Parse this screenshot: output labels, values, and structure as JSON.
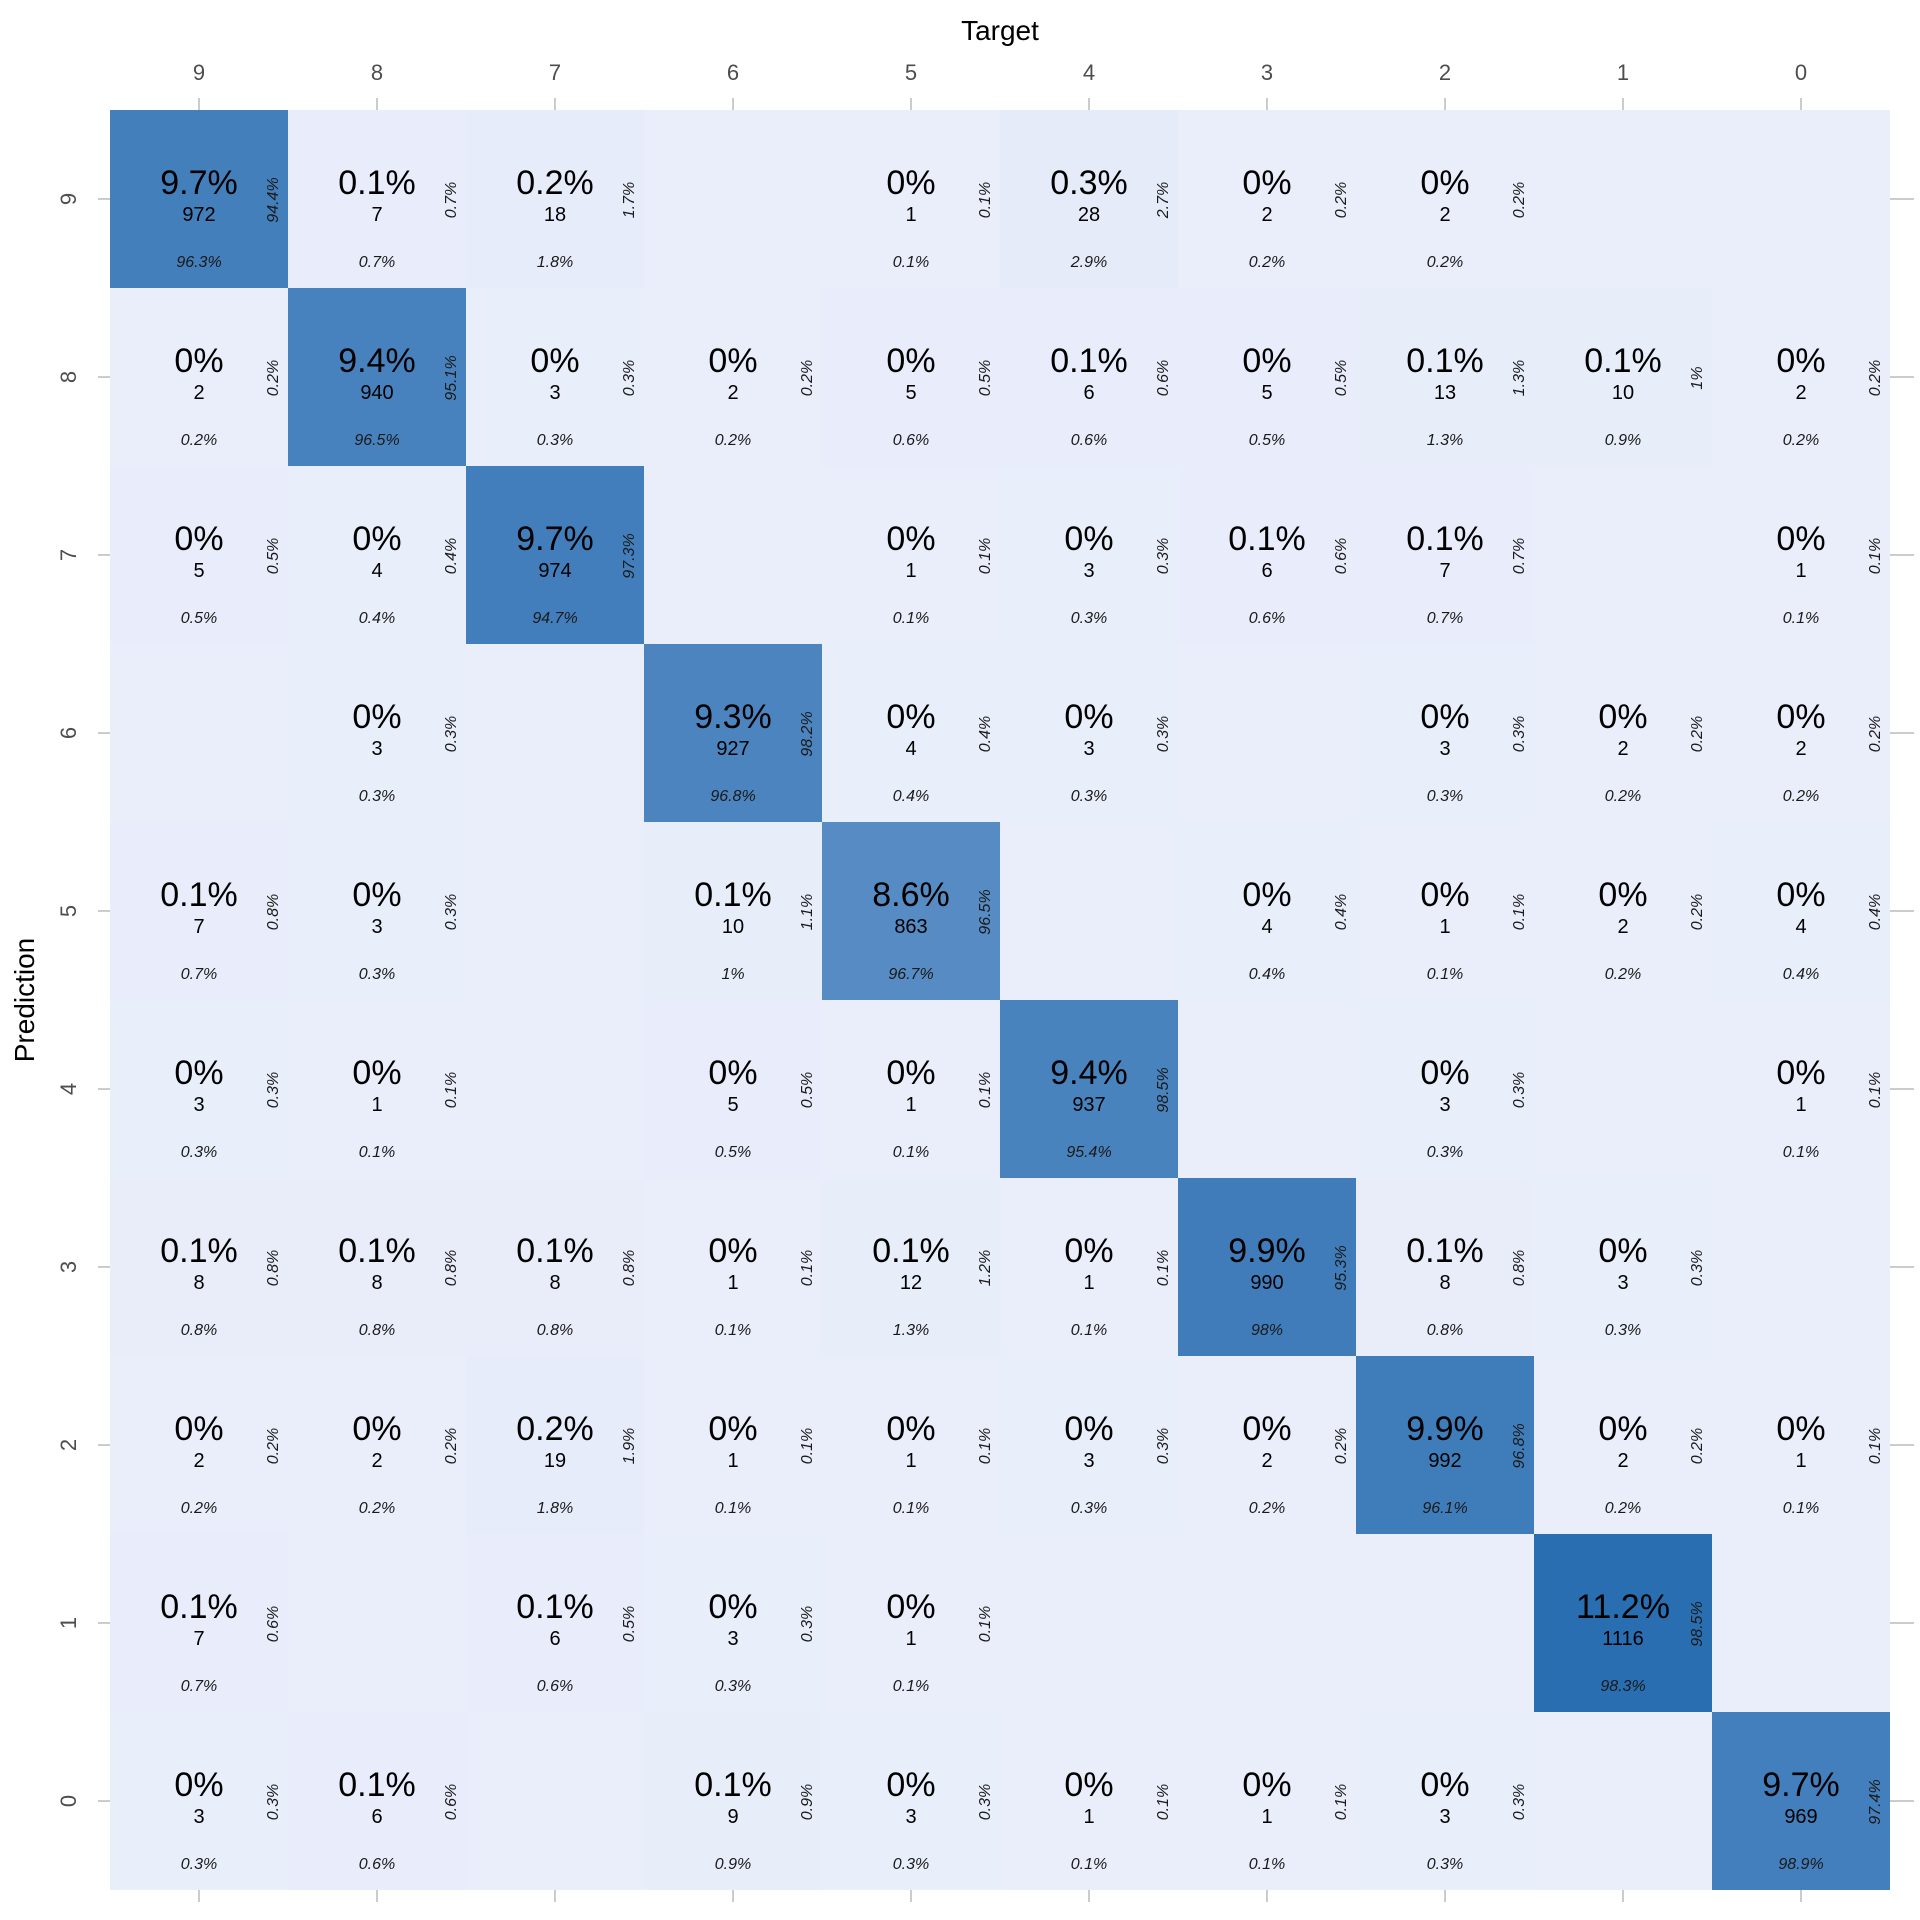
{
  "colors": {
    "background_tile": "#EAEEFB",
    "tile_high": "#2A6EB2",
    "tick_line": "#CCCCCC"
  },
  "chart_data": {
    "type": "heatmap",
    "title": "",
    "xlabel": "Target",
    "ylabel": "Prediction",
    "x_categories": [
      "9",
      "8",
      "7",
      "6",
      "5",
      "4",
      "3",
      "2",
      "1",
      "0"
    ],
    "y_categories": [
      "9",
      "8",
      "7",
      "6",
      "5",
      "4",
      "3",
      "2",
      "1",
      "0"
    ],
    "cells": [
      {
        "pred": "9",
        "target": "9",
        "count": 972,
        "pct": "9.7%",
        "col_pct": "96.3%",
        "row_pct": "94.4%"
      },
      {
        "pred": "9",
        "target": "8",
        "count": 7,
        "pct": "0.1%",
        "col_pct": "0.7%",
        "row_pct": "0.7%"
      },
      {
        "pred": "9",
        "target": "7",
        "count": 18,
        "pct": "0.2%",
        "col_pct": "1.8%",
        "row_pct": "1.7%"
      },
      {
        "pred": "9",
        "target": "5",
        "count": 1,
        "pct": "0%",
        "col_pct": "0.1%",
        "row_pct": "0.1%"
      },
      {
        "pred": "9",
        "target": "4",
        "count": 28,
        "pct": "0.3%",
        "col_pct": "2.9%",
        "row_pct": "2.7%"
      },
      {
        "pred": "9",
        "target": "3",
        "count": 2,
        "pct": "0%",
        "col_pct": "0.2%",
        "row_pct": "0.2%"
      },
      {
        "pred": "9",
        "target": "2",
        "count": 2,
        "pct": "0%",
        "col_pct": "0.2%",
        "row_pct": "0.2%"
      },
      {
        "pred": "8",
        "target": "9",
        "count": 2,
        "pct": "0%",
        "col_pct": "0.2%",
        "row_pct": "0.2%"
      },
      {
        "pred": "8",
        "target": "8",
        "count": 940,
        "pct": "9.4%",
        "col_pct": "96.5%",
        "row_pct": "95.1%"
      },
      {
        "pred": "8",
        "target": "7",
        "count": 3,
        "pct": "0%",
        "col_pct": "0.3%",
        "row_pct": "0.3%"
      },
      {
        "pred": "8",
        "target": "6",
        "count": 2,
        "pct": "0%",
        "col_pct": "0.2%",
        "row_pct": "0.2%"
      },
      {
        "pred": "8",
        "target": "5",
        "count": 5,
        "pct": "0%",
        "col_pct": "0.6%",
        "row_pct": "0.5%"
      },
      {
        "pred": "8",
        "target": "4",
        "count": 6,
        "pct": "0.1%",
        "col_pct": "0.6%",
        "row_pct": "0.6%"
      },
      {
        "pred": "8",
        "target": "3",
        "count": 5,
        "pct": "0%",
        "col_pct": "0.5%",
        "row_pct": "0.5%"
      },
      {
        "pred": "8",
        "target": "2",
        "count": 13,
        "pct": "0.1%",
        "col_pct": "1.3%",
        "row_pct": "1.3%"
      },
      {
        "pred": "8",
        "target": "1",
        "count": 10,
        "pct": "0.1%",
        "col_pct": "0.9%",
        "row_pct": "1%"
      },
      {
        "pred": "8",
        "target": "0",
        "count": 2,
        "pct": "0%",
        "col_pct": "0.2%",
        "row_pct": "0.2%"
      },
      {
        "pred": "7",
        "target": "9",
        "count": 5,
        "pct": "0%",
        "col_pct": "0.5%",
        "row_pct": "0.5%"
      },
      {
        "pred": "7",
        "target": "8",
        "count": 4,
        "pct": "0%",
        "col_pct": "0.4%",
        "row_pct": "0.4%"
      },
      {
        "pred": "7",
        "target": "7",
        "count": 974,
        "pct": "9.7%",
        "col_pct": "94.7%",
        "row_pct": "97.3%"
      },
      {
        "pred": "7",
        "target": "5",
        "count": 1,
        "pct": "0%",
        "col_pct": "0.1%",
        "row_pct": "0.1%"
      },
      {
        "pred": "7",
        "target": "4",
        "count": 3,
        "pct": "0%",
        "col_pct": "0.3%",
        "row_pct": "0.3%"
      },
      {
        "pred": "7",
        "target": "3",
        "count": 6,
        "pct": "0.1%",
        "col_pct": "0.6%",
        "row_pct": "0.6%"
      },
      {
        "pred": "7",
        "target": "2",
        "count": 7,
        "pct": "0.1%",
        "col_pct": "0.7%",
        "row_pct": "0.7%"
      },
      {
        "pred": "7",
        "target": "0",
        "count": 1,
        "pct": "0%",
        "col_pct": "0.1%",
        "row_pct": "0.1%"
      },
      {
        "pred": "6",
        "target": "8",
        "count": 3,
        "pct": "0%",
        "col_pct": "0.3%",
        "row_pct": "0.3%"
      },
      {
        "pred": "6",
        "target": "6",
        "count": 927,
        "pct": "9.3%",
        "col_pct": "96.8%",
        "row_pct": "98.2%"
      },
      {
        "pred": "6",
        "target": "5",
        "count": 4,
        "pct": "0%",
        "col_pct": "0.4%",
        "row_pct": "0.4%"
      },
      {
        "pred": "6",
        "target": "4",
        "count": 3,
        "pct": "0%",
        "col_pct": "0.3%",
        "row_pct": "0.3%"
      },
      {
        "pred": "6",
        "target": "2",
        "count": 3,
        "pct": "0%",
        "col_pct": "0.3%",
        "row_pct": "0.3%"
      },
      {
        "pred": "6",
        "target": "1",
        "count": 2,
        "pct": "0%",
        "col_pct": "0.2%",
        "row_pct": "0.2%"
      },
      {
        "pred": "6",
        "target": "0",
        "count": 2,
        "pct": "0%",
        "col_pct": "0.2%",
        "row_pct": "0.2%"
      },
      {
        "pred": "5",
        "target": "9",
        "count": 7,
        "pct": "0.1%",
        "col_pct": "0.7%",
        "row_pct": "0.8%"
      },
      {
        "pred": "5",
        "target": "8",
        "count": 3,
        "pct": "0%",
        "col_pct": "0.3%",
        "row_pct": "0.3%"
      },
      {
        "pred": "5",
        "target": "6",
        "count": 10,
        "pct": "0.1%",
        "col_pct": "1%",
        "row_pct": "1.1%"
      },
      {
        "pred": "5",
        "target": "5",
        "count": 863,
        "pct": "8.6%",
        "col_pct": "96.7%",
        "row_pct": "96.5%"
      },
      {
        "pred": "5",
        "target": "3",
        "count": 4,
        "pct": "0%",
        "col_pct": "0.4%",
        "row_pct": "0.4%"
      },
      {
        "pred": "5",
        "target": "2",
        "count": 1,
        "pct": "0%",
        "col_pct": "0.1%",
        "row_pct": "0.1%"
      },
      {
        "pred": "5",
        "target": "1",
        "count": 2,
        "pct": "0%",
        "col_pct": "0.2%",
        "row_pct": "0.2%"
      },
      {
        "pred": "5",
        "target": "0",
        "count": 4,
        "pct": "0%",
        "col_pct": "0.4%",
        "row_pct": "0.4%"
      },
      {
        "pred": "4",
        "target": "9",
        "count": 3,
        "pct": "0%",
        "col_pct": "0.3%",
        "row_pct": "0.3%"
      },
      {
        "pred": "4",
        "target": "8",
        "count": 1,
        "pct": "0%",
        "col_pct": "0.1%",
        "row_pct": "0.1%"
      },
      {
        "pred": "4",
        "target": "6",
        "count": 5,
        "pct": "0%",
        "col_pct": "0.5%",
        "row_pct": "0.5%"
      },
      {
        "pred": "4",
        "target": "5",
        "count": 1,
        "pct": "0%",
        "col_pct": "0.1%",
        "row_pct": "0.1%"
      },
      {
        "pred": "4",
        "target": "4",
        "count": 937,
        "pct": "9.4%",
        "col_pct": "95.4%",
        "row_pct": "98.5%"
      },
      {
        "pred": "4",
        "target": "2",
        "count": 3,
        "pct": "0%",
        "col_pct": "0.3%",
        "row_pct": "0.3%"
      },
      {
        "pred": "4",
        "target": "0",
        "count": 1,
        "pct": "0%",
        "col_pct": "0.1%",
        "row_pct": "0.1%"
      },
      {
        "pred": "3",
        "target": "9",
        "count": 8,
        "pct": "0.1%",
        "col_pct": "0.8%",
        "row_pct": "0.8%"
      },
      {
        "pred": "3",
        "target": "8",
        "count": 8,
        "pct": "0.1%",
        "col_pct": "0.8%",
        "row_pct": "0.8%"
      },
      {
        "pred": "3",
        "target": "7",
        "count": 8,
        "pct": "0.1%",
        "col_pct": "0.8%",
        "row_pct": "0.8%"
      },
      {
        "pred": "3",
        "target": "6",
        "count": 1,
        "pct": "0%",
        "col_pct": "0.1%",
        "row_pct": "0.1%"
      },
      {
        "pred": "3",
        "target": "5",
        "count": 12,
        "pct": "0.1%",
        "col_pct": "1.3%",
        "row_pct": "1.2%"
      },
      {
        "pred": "3",
        "target": "4",
        "count": 1,
        "pct": "0%",
        "col_pct": "0.1%",
        "row_pct": "0.1%"
      },
      {
        "pred": "3",
        "target": "3",
        "count": 990,
        "pct": "9.9%",
        "col_pct": "98%",
        "row_pct": "95.3%"
      },
      {
        "pred": "3",
        "target": "2",
        "count": 8,
        "pct": "0.1%",
        "col_pct": "0.8%",
        "row_pct": "0.8%"
      },
      {
        "pred": "3",
        "target": "1",
        "count": 3,
        "pct": "0%",
        "col_pct": "0.3%",
        "row_pct": "0.3%"
      },
      {
        "pred": "2",
        "target": "9",
        "count": 2,
        "pct": "0%",
        "col_pct": "0.2%",
        "row_pct": "0.2%"
      },
      {
        "pred": "2",
        "target": "8",
        "count": 2,
        "pct": "0%",
        "col_pct": "0.2%",
        "row_pct": "0.2%"
      },
      {
        "pred": "2",
        "target": "7",
        "count": 19,
        "pct": "0.2%",
        "col_pct": "1.8%",
        "row_pct": "1.9%"
      },
      {
        "pred": "2",
        "target": "6",
        "count": 1,
        "pct": "0%",
        "col_pct": "0.1%",
        "row_pct": "0.1%"
      },
      {
        "pred": "2",
        "target": "5",
        "count": 1,
        "pct": "0%",
        "col_pct": "0.1%",
        "row_pct": "0.1%"
      },
      {
        "pred": "2",
        "target": "4",
        "count": 3,
        "pct": "0%",
        "col_pct": "0.3%",
        "row_pct": "0.3%"
      },
      {
        "pred": "2",
        "target": "3",
        "count": 2,
        "pct": "0%",
        "col_pct": "0.2%",
        "row_pct": "0.2%"
      },
      {
        "pred": "2",
        "target": "2",
        "count": 992,
        "pct": "9.9%",
        "col_pct": "96.1%",
        "row_pct": "96.8%"
      },
      {
        "pred": "2",
        "target": "1",
        "count": 2,
        "pct": "0%",
        "col_pct": "0.2%",
        "row_pct": "0.2%"
      },
      {
        "pred": "2",
        "target": "0",
        "count": 1,
        "pct": "0%",
        "col_pct": "0.1%",
        "row_pct": "0.1%"
      },
      {
        "pred": "1",
        "target": "9",
        "count": 7,
        "pct": "0.1%",
        "col_pct": "0.7%",
        "row_pct": "0.6%"
      },
      {
        "pred": "1",
        "target": "7",
        "count": 6,
        "pct": "0.1%",
        "col_pct": "0.6%",
        "row_pct": "0.5%"
      },
      {
        "pred": "1",
        "target": "6",
        "count": 3,
        "pct": "0%",
        "col_pct": "0.3%",
        "row_pct": "0.3%"
      },
      {
        "pred": "1",
        "target": "5",
        "count": 1,
        "pct": "0%",
        "col_pct": "0.1%",
        "row_pct": "0.1%"
      },
      {
        "pred": "1",
        "target": "1",
        "count": 1116,
        "pct": "11.2%",
        "col_pct": "98.3%",
        "row_pct": "98.5%"
      },
      {
        "pred": "0",
        "target": "9",
        "count": 3,
        "pct": "0%",
        "col_pct": "0.3%",
        "row_pct": "0.3%"
      },
      {
        "pred": "0",
        "target": "8",
        "count": 6,
        "pct": "0.1%",
        "col_pct": "0.6%",
        "row_pct": "0.6%"
      },
      {
        "pred": "0",
        "target": "6",
        "count": 9,
        "pct": "0.1%",
        "col_pct": "0.9%",
        "row_pct": "0.9%"
      },
      {
        "pred": "0",
        "target": "5",
        "count": 3,
        "pct": "0%",
        "col_pct": "0.3%",
        "row_pct": "0.3%"
      },
      {
        "pred": "0",
        "target": "4",
        "count": 1,
        "pct": "0%",
        "col_pct": "0.1%",
        "row_pct": "0.1%"
      },
      {
        "pred": "0",
        "target": "3",
        "count": 1,
        "pct": "0%",
        "col_pct": "0.1%",
        "row_pct": "0.1%"
      },
      {
        "pred": "0",
        "target": "2",
        "count": 3,
        "pct": "0%",
        "col_pct": "0.3%",
        "row_pct": "0.3%"
      },
      {
        "pred": "0",
        "target": "0",
        "count": 969,
        "pct": "9.7%",
        "col_pct": "98.9%",
        "row_pct": "97.4%"
      }
    ]
  }
}
